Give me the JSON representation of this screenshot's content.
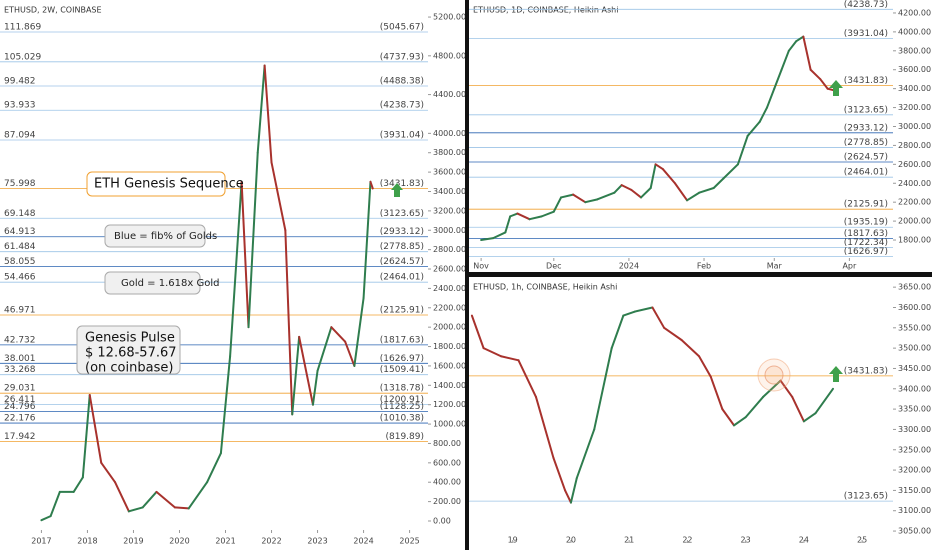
{
  "chart_data": [
    {
      "type": "line",
      "title": "ETHUSD, 2W, COINBASE",
      "xlim": [
        2016.1,
        2025.4
      ],
      "xticks": [
        2017,
        2018,
        2019,
        2020,
        2021,
        2022,
        2023,
        2024,
        2025
      ],
      "ylim": [
        -93,
        5376
      ],
      "yticks": [
        {
          "value": 0,
          "label": "0.00"
        },
        {
          "value": 200,
          "label": "200.00"
        },
        {
          "value": 400,
          "label": "400.00"
        },
        {
          "value": 600,
          "label": "600.00"
        },
        {
          "value": 800,
          "label": "800.00"
        },
        {
          "value": 1000,
          "label": "1000.00"
        },
        {
          "value": 1200,
          "label": "1200.00"
        },
        {
          "value": 1400,
          "label": "1400.00"
        },
        {
          "value": 1600,
          "label": "1600.00"
        },
        {
          "value": 1800,
          "label": "1800.00"
        },
        {
          "value": 2000,
          "label": "2000.00"
        },
        {
          "value": 2200,
          "label": "2200.00"
        },
        {
          "value": 2400,
          "label": "2400.00"
        },
        {
          "value": 2600,
          "label": "2600.00"
        },
        {
          "value": 2800,
          "label": "2800.00"
        },
        {
          "value": 3000,
          "label": "3000.00"
        },
        {
          "value": 3200,
          "label": "3200.00"
        },
        {
          "value": 3400,
          "label": "3400.00"
        },
        {
          "value": 3600,
          "label": "3600.00"
        },
        {
          "value": 3800,
          "label": "3800.00"
        },
        {
          "value": 4000,
          "label": "4000.00"
        },
        {
          "value": 4400,
          "label": "4400.00"
        },
        {
          "value": 4800,
          "label": "4800.00"
        },
        {
          "value": 5200,
          "label": "5200.00"
        }
      ],
      "series": [
        {
          "x": [
            2017.0,
            2017.2,
            2017.4,
            2017.7,
            2017.9,
            2018.05,
            2018.3,
            2018.6,
            2018.9,
            2019.2,
            2019.5,
            2019.9,
            2020.2,
            2020.6,
            2020.9,
            2021.1,
            2021.35,
            2021.5,
            2021.7,
            2021.85,
            2022.0,
            2022.3,
            2022.45,
            2022.6,
            2022.9,
            2023.0,
            2023.3,
            2023.6,
            2023.8,
            2024.0,
            2024.15,
            2024.2
          ],
          "values": [
            8,
            50,
            300,
            300,
            450,
            1300,
            600,
            400,
            100,
            140,
            300,
            140,
            130,
            400,
            700,
            1700,
            3500,
            2000,
            3800,
            4700,
            3700,
            3000,
            1100,
            1900,
            1200,
            1550,
            2000,
            1850,
            1600,
            2300,
            3500,
            3431
          ]
        }
      ],
      "levels": [
        {
          "value": 5045.67,
          "label": "(5045.67)",
          "ratio": 111.869,
          "color": "#9cc3e6"
        },
        {
          "value": 4737.93,
          "label": "(4737.93)",
          "ratio": 105.029,
          "color": "#9cc3e6"
        },
        {
          "value": 4488.38,
          "label": "(4488.38)",
          "ratio": 99.482,
          "color": "#9cc3e6"
        },
        {
          "value": 4238.73,
          "label": "(4238.73)",
          "ratio": 93.933,
          "color": "#9cc3e6"
        },
        {
          "value": 3931.04,
          "label": "(3931.04)",
          "ratio": 87.094,
          "color": "#9cc3e6"
        },
        {
          "value": 3431.83,
          "label": "(3431.83)",
          "ratio": 75.998,
          "color": "#f0a030"
        },
        {
          "value": 3123.65,
          "label": "(3123.65)",
          "ratio": 69.148,
          "color": "#9cc3e6"
        },
        {
          "value": 2933.12,
          "label": "(2933.12)",
          "ratio": 64.913,
          "color": "#2a63b0"
        },
        {
          "value": 2778.85,
          "label": "(2778.85)",
          "ratio": 61.484,
          "color": "#9cc3e6"
        },
        {
          "value": 2624.57,
          "label": "(2624.57)",
          "ratio": 58.055,
          "color": "#2a63b0"
        },
        {
          "value": 2464.01,
          "label": "(2464.01)",
          "ratio": 54.466,
          "color": "#9cc3e6"
        },
        {
          "value": 2125.91,
          "label": "(2125.91)",
          "ratio": 46.971,
          "color": "#f0a030"
        },
        {
          "value": 1817.63,
          "label": "(1817.63)",
          "ratio": 42.732,
          "color": "#2a63b0"
        },
        {
          "value": 1626.97,
          "label": "(1626.97)",
          "ratio": 38.001,
          "color": "#2a63b0"
        },
        {
          "value": 1509.41,
          "label": "(1509.41)",
          "ratio": 33.268,
          "color": "#9cc3e6"
        },
        {
          "value": 1318.78,
          "label": "(1318.78)",
          "ratio": 29.031,
          "color": "#f0a030"
        },
        {
          "value": 1200.91,
          "label": "(1200.91)",
          "ratio": 26.411,
          "color": "#9cc3e6"
        },
        {
          "value": 1128.25,
          "label": "(1128.25)",
          "ratio": 24.796,
          "color": "#2a63b0"
        },
        {
          "value": 1010.38,
          "label": "(1010.38)",
          "ratio": 22.176,
          "color": "#2a63b0"
        },
        {
          "value": 819.89,
          "label": "(819.89)",
          "ratio": 17.942,
          "color": "#f0a030"
        }
      ],
      "annotations": [
        "ETH Genesis Sequence",
        "Blue = fib% of Golds",
        "Gold = 1.618x Gold",
        "Genesis Pulse",
        "$ 12.68-57.67",
        "(on coinbase)"
      ]
    },
    {
      "type": "line",
      "title": "ETHUSD, 1D, COINBASE, Heikin Ashi",
      "xlim": [
        -5,
        170
      ],
      "xticks": [
        {
          "value": 0,
          "label": "Nov"
        },
        {
          "value": 30,
          "label": "Dec"
        },
        {
          "value": 61,
          "label": "2024"
        },
        {
          "value": 92,
          "label": "Feb"
        },
        {
          "value": 121,
          "label": "Mar"
        },
        {
          "value": 152,
          "label": "Apr"
        }
      ],
      "ylim": [
        1610,
        4337
      ],
      "yticks": [
        {
          "value": 1800,
          "label": "1800.00"
        },
        {
          "value": 2000,
          "label": "2000.00"
        },
        {
          "value": 2200,
          "label": "2200.00"
        },
        {
          "value": 2400,
          "label": "2400.00"
        },
        {
          "value": 2600,
          "label": "2600.00"
        },
        {
          "value": 2800,
          "label": "2800.00"
        },
        {
          "value": 3000,
          "label": "3000.00"
        },
        {
          "value": 3200,
          "label": "3200.00"
        },
        {
          "value": 3400,
          "label": "3400.00"
        },
        {
          "value": 3600,
          "label": "3600.00"
        },
        {
          "value": 3800,
          "label": "3800.00"
        },
        {
          "value": 4000,
          "label": "4000.00"
        },
        {
          "value": 4200,
          "label": "4200.00"
        }
      ],
      "series": [
        {
          "x": [
            0,
            5,
            10,
            12,
            15,
            20,
            25,
            30,
            33,
            38,
            43,
            48,
            55,
            58,
            62,
            66,
            70,
            72,
            75,
            80,
            85,
            90,
            96,
            100,
            106,
            110,
            115,
            118,
            121,
            124,
            127,
            130,
            133,
            136,
            140,
            143,
            146
          ],
          "values": [
            1800,
            1820,
            1880,
            2050,
            2080,
            2020,
            2050,
            2100,
            2250,
            2280,
            2200,
            2230,
            2300,
            2380,
            2330,
            2250,
            2350,
            2600,
            2550,
            2400,
            2220,
            2300,
            2350,
            2450,
            2600,
            2900,
            3050,
            3200,
            3400,
            3600,
            3800,
            3900,
            3950,
            3600,
            3500,
            3400,
            3380
          ]
        }
      ],
      "levels": [
        {
          "value": 4238.73,
          "label": "(4238.73)",
          "color": "#9cc3e6"
        },
        {
          "value": 3931.04,
          "label": "(3931.04)",
          "color": "#9cc3e6"
        },
        {
          "value": 3431.83,
          "label": "(3431.83)",
          "color": "#f0a030"
        },
        {
          "value": 3123.65,
          "label": "(3123.65)",
          "color": "#9cc3e6"
        },
        {
          "value": 2933.12,
          "label": "(2933.12)",
          "color": "#2a63b0"
        },
        {
          "value": 2778.85,
          "label": "(2778.85)",
          "color": "#9cc3e6"
        },
        {
          "value": 2624.57,
          "label": "(2624.57)",
          "color": "#2a63b0"
        },
        {
          "value": 2464.01,
          "label": "(2464.01)",
          "color": "#9cc3e6"
        },
        {
          "value": 2125.91,
          "label": "(2125.91)",
          "color": "#f0a030"
        },
        {
          "value": 1935.19,
          "label": "(1935.19)",
          "color": "#9cc3e6"
        },
        {
          "value": 1817.63,
          "label": "(1817.63)",
          "color": "#2a63b0"
        },
        {
          "value": 1722.34,
          "label": "(1722.34)",
          "color": "#9cc3e6"
        },
        {
          "value": 1626.97,
          "label": "(1626.97)",
          "color": "#9cc3e6"
        }
      ]
    },
    {
      "type": "line",
      "title": "ETHUSD, 1h, COINBASE, Heikin Ashi",
      "xlim": [
        18.25,
        25.53
      ],
      "xticks": [
        19,
        20,
        21,
        22,
        23,
        24,
        25
      ],
      "ylim": [
        3028,
        3675
      ],
      "yticks": [
        {
          "value": 3050,
          "label": "3050.00"
        },
        {
          "value": 3100,
          "label": "3100.00"
        },
        {
          "value": 3150,
          "label": "3150.00"
        },
        {
          "value": 3200,
          "label": "3200.00"
        },
        {
          "value": 3250,
          "label": "3250.00"
        },
        {
          "value": 3300,
          "label": "3300.00"
        },
        {
          "value": 3350,
          "label": "3350.00"
        },
        {
          "value": 3400,
          "label": "3400.00"
        },
        {
          "value": 3450,
          "label": "3450.00"
        },
        {
          "value": 3500,
          "label": "3500.00"
        },
        {
          "value": 3550,
          "label": "3550.00"
        },
        {
          "value": 3600,
          "label": "3600.00"
        },
        {
          "value": 3650,
          "label": "3650.00"
        }
      ],
      "series": [
        {
          "x": [
            18.3,
            18.5,
            18.8,
            19.1,
            19.4,
            19.7,
            19.9,
            20.0,
            20.1,
            20.4,
            20.7,
            20.9,
            21.1,
            21.4,
            21.6,
            21.9,
            22.2,
            22.4,
            22.6,
            22.8,
            23.0,
            23.3,
            23.6,
            23.8,
            24.0,
            24.2,
            24.5
          ],
          "values": [
            3580,
            3500,
            3480,
            3470,
            3380,
            3230,
            3150,
            3120,
            3180,
            3300,
            3500,
            3580,
            3590,
            3600,
            3550,
            3520,
            3480,
            3430,
            3350,
            3310,
            3330,
            3380,
            3420,
            3380,
            3320,
            3340,
            3400
          ]
        }
      ],
      "levels": [
        {
          "value": 3431.83,
          "label": "(3431.83)",
          "color": "#f0a030"
        },
        {
          "value": 3123.65,
          "label": "(3123.65)",
          "color": "#9cc3e6"
        }
      ]
    }
  ]
}
